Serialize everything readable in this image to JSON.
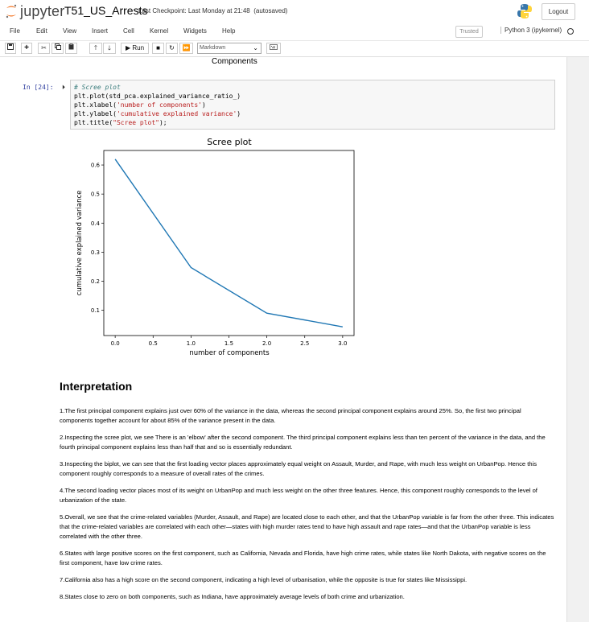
{
  "header": {
    "logo_text": "jupyter",
    "notebook_name": "T51_US_Arrests",
    "checkpoint": "Last Checkpoint: Last Monday at 21:48",
    "autosaved": "(autosaved)",
    "logout_label": "Logout"
  },
  "menubar": {
    "items": [
      "File",
      "Edit",
      "View",
      "Insert",
      "Cell",
      "Kernel",
      "Widgets",
      "Help"
    ],
    "trusted_label": "Trusted",
    "kernel_name": "Python 3 (ipykernel)"
  },
  "toolbar": {
    "run_label": "Run",
    "cell_type": "Markdown",
    "icons": [
      "save-icon",
      "plus-icon",
      "scissors-icon",
      "copy-icon",
      "paste-icon",
      "arrow-up-icon",
      "arrow-down-icon",
      "run-icon",
      "stop-icon",
      "restart-icon",
      "fast-forward-icon",
      "keyboard-icon"
    ]
  },
  "notebook": {
    "prev_output": "Components",
    "cell": {
      "prompt": "In [24]:",
      "code": [
        {
          "parts": [
            {
              "cls": "cm-comment",
              "text": "# Scree plot"
            }
          ]
        },
        {
          "parts": [
            {
              "cls": "cm-plain",
              "text": "plt.plot(std_pca.explained_variance_ratio_)"
            }
          ]
        },
        {
          "parts": [
            {
              "cls": "cm-plain",
              "text": "plt.xlabel("
            },
            {
              "cls": "cm-string",
              "text": "'number of components'"
            },
            {
              "cls": "cm-plain",
              "text": ")"
            }
          ]
        },
        {
          "parts": [
            {
              "cls": "cm-plain",
              "text": "plt.ylabel("
            },
            {
              "cls": "cm-string",
              "text": "'cumulative explained variance'"
            },
            {
              "cls": "cm-plain",
              "text": ")"
            }
          ]
        },
        {
          "parts": [
            {
              "cls": "cm-plain",
              "text": "plt.title("
            },
            {
              "cls": "cm-string",
              "text": "\"Scree plot\""
            },
            {
              "cls": "cm-plain",
              "text": ");"
            }
          ]
        }
      ]
    }
  },
  "chart_data": {
    "type": "line",
    "title": "Scree plot",
    "xlabel": "number of components",
    "ylabel": "cumulative explained variance",
    "x": [
      0,
      1,
      2,
      3
    ],
    "series": [
      {
        "values": [
          0.62,
          0.247,
          0.09,
          0.043
        ]
      }
    ],
    "xlim": [
      -0.15,
      3.15
    ],
    "ylim": [
      0.013,
      0.65
    ],
    "xticks": [
      "0.0",
      "0.5",
      "1.0",
      "1.5",
      "2.0",
      "2.5",
      "3.0"
    ],
    "yticks": [
      "0.1",
      "0.2",
      "0.3",
      "0.4",
      "0.5",
      "0.6"
    ],
    "line_color": "#1f77b4",
    "grid": false,
    "legend": "none"
  },
  "markdown": {
    "heading": "Interpretation",
    "paragraphs": [
      "1.The first principal component explains just over 60% of the variance in the data, whereas the second principal component explains around 25%. So, the first two principal components together account for about 85% of the variance present in the data.",
      "2.Inspecting the scree plot, we see There is an 'elbow' after the second component. The third principal component explains less than ten percent of the variance in the data, and the fourth principal component explains less than half that and so is essentially redundant.",
      "3.Inspecting the biplot, we can see that the first loading vector places approximately equal weight on Assault, Murder, and Rape, with much less weight on UrbanPop. Hence this component roughly corresponds to a measure of overall rates of the crimes.",
      "4.The second loading vector places most of its weight on UrbanPop and much less weight on the other three features. Hence, this component roughly corresponds to the level of urbanization of the state.",
      "5.Overall, we see that the crime-related variables (Murder, Assault, and Rape) are located close to each other, and that the UrbanPop variable is far from the other three. This indicates that the crime-related variables are correlated with each other—states with high murder rates tend to have high assault and rape rates—and that the UrbanPop variable is less correlated with the other three.",
      "6.States with large positive scores on the first component, such as California, Nevada and Florida, have high crime rates, while states like North Dakota, with negative scores on the first component, have low crime rates.",
      "7.California also has a high score on the second component, indicating a high level of urbanisation, while the opposite is true for states like Mississippi.",
      "8.States close to zero on both components, such as Indiana, have approximately average levels of both crime and urbanization."
    ]
  }
}
